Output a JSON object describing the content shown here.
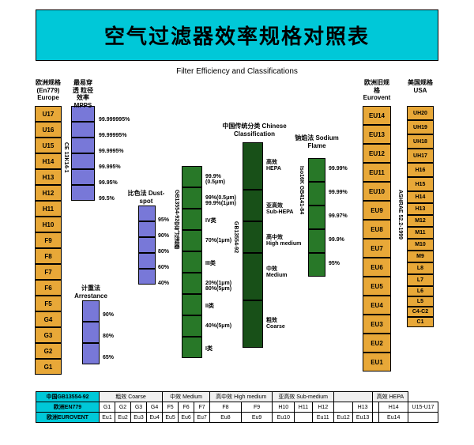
{
  "header": {
    "title_cn": "空气过滤器效率规格对照表",
    "subtitle": "Filter Efficiency and Classifications"
  },
  "colors": {
    "header_bg": "#00c8d8",
    "orange": "#e8a838",
    "blue": "#7878d8",
    "green": "#287828",
    "dkgreen": "#185018",
    "bg": "#ffffff"
  },
  "columns": {
    "europe": {
      "head": "欧洲规格\n(En779)\nEurope",
      "items": [
        "U17",
        "U16",
        "U15",
        "H14",
        "H13",
        "H12",
        "H11",
        "H10",
        "F9",
        "F8",
        "F7",
        "F6",
        "F5",
        "G4",
        "G3",
        "G2",
        "G1"
      ]
    },
    "mpps": {
      "head": "最易穿透\n粒径效率\nMPPS",
      "labels": [
        "99.999995%",
        "99.99995%",
        "99.9995%",
        "99.995%",
        "99.95%",
        "99.5%"
      ]
    },
    "dustspot": {
      "head": "比色法\nDust-spot",
      "labels": [
        "95%",
        "90%",
        "80%",
        "60%",
        "40%"
      ]
    },
    "arrest": {
      "head": "计重法\nArrestance",
      "labels": [
        "90%",
        "80%",
        "65%"
      ]
    },
    "medium": {
      "labels": [
        "99.9%\n(0.5μm)",
        "99%(0.5μm)\n99.9%(1μm)",
        "IV类",
        "70%(1μm)",
        "III类",
        "20%(1μm)\n80%(5μm)",
        "II类",
        "40%(5μm)",
        "I类"
      ]
    },
    "chinese": {
      "head": "中国传统分类\nChinese Classification",
      "items": [
        {
          "l": "高效\nHEPA"
        },
        {
          "l": "亚高效\nSub-HEPA"
        },
        {
          "l": "高中效\nHigh medium"
        },
        {
          "l": "中效\nMedium"
        },
        {
          "l": "粗效\nCoarse"
        }
      ]
    },
    "sodium": {
      "head": "钠焰法\nSodium Flame",
      "labels": [
        "99.99%",
        "99.99%",
        "99.97%",
        "99.9%",
        "95%"
      ]
    },
    "eurovent": {
      "head": "欧洲旧规格\nEurovent",
      "items": [
        "EU14",
        "EU13",
        "EU12",
        "EU11",
        "EU10",
        "EU9",
        "EU8",
        "EU7",
        "EU6",
        "EU5",
        "EU4",
        "EU3",
        "EU2",
        "EU1"
      ]
    },
    "usa": {
      "head": "美国规格\nUSA",
      "items": [
        "UH20",
        "UH19",
        "UH18",
        "UH17",
        "H16",
        "H15",
        "H14",
        "H13",
        "M12",
        "M11",
        "M10",
        "M9",
        "L8",
        "L7",
        "L6",
        "L5",
        "C4-C2",
        "C1"
      ]
    }
  },
  "bottom": {
    "row0": {
      "h": "中国GB13554-92",
      "cells": [
        "粗效\nCoarse",
        "中效\nMedium",
        "高中效\nHigh medium",
        "亚高效\nSub-medium",
        "",
        "高效\nHEPA"
      ]
    },
    "row1": {
      "h": "欧洲EN779",
      "c": [
        "G1",
        "G2",
        "G3",
        "G4",
        "F5",
        "F6",
        "F7",
        "F8",
        "F9",
        "H10",
        "H11",
        "H12",
        "",
        "H13",
        "",
        "H14",
        "U15-U17"
      ]
    },
    "row2": {
      "h": "欧洲EUROVENT",
      "c": [
        "Eu1",
        "Eu2",
        "Eu3",
        "Eu4",
        "Eu5",
        "Eu6",
        "Eu7",
        "Eu8",
        "Eu9",
        "Eu10",
        "",
        "Eu11",
        "Eu12",
        "Eu13",
        "",
        "Eu14",
        ""
      ]
    }
  }
}
